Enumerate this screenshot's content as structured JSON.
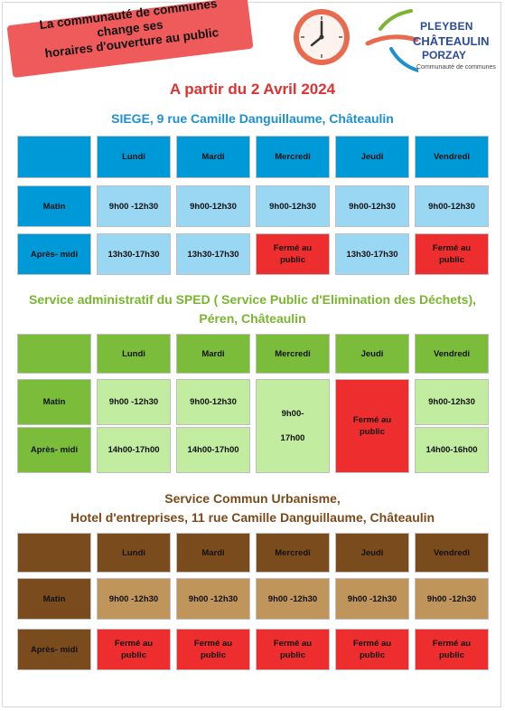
{
  "banner": {
    "line1": "La communauté de communes",
    "line2": "change ses",
    "line3": "horaires d'ouverture au public"
  },
  "logo": {
    "line1": "PLEYBEN",
    "line2": "CHÂTEAULIN",
    "line3": "PORZAY",
    "tagline": "Communauté de communes"
  },
  "icons": {
    "clock": "clock-icon",
    "logo": "logo-swoosh-icon"
  },
  "colors": {
    "red": "#ee2e2e",
    "blue_dark": "#0099d8",
    "blue_light": "#9ad7f3",
    "green_dark": "#7bbd3a",
    "green_light": "#c2ec9f",
    "brown_dark": "#7a4c1d",
    "brown_light": "#c0955c",
    "title_blue": "#1e8fd0",
    "title_green": "#7ab530",
    "title_brown": "#7a4a1b"
  },
  "date_title": "A partir du 2 Avril 2024",
  "sections": [
    {
      "title_lines": [
        "SIEGE, 9 rue Camille Danguillaume, Châteaulin"
      ],
      "days": [
        "Lundi",
        "Mardi",
        "Mercredi",
        "Jeudi",
        "Vendredi"
      ],
      "rows": [
        {
          "label": "Matin",
          "cells": [
            "9h00 -12h30",
            "9h00-12h30",
            "9h00-12h30",
            "9h00-12h30",
            "9h00-12h30"
          ]
        },
        {
          "label": "Après- midi",
          "cells": [
            "13h30-17h30",
            "13h30-17h30",
            "Fermé au public",
            "13h30-17h30",
            "Fermé au public"
          ]
        }
      ]
    },
    {
      "title_lines": [
        "Service administratif du SPED  ( Service Public d'Elimination des Déchets),",
        "Péren, Châteaulin"
      ],
      "days": [
        "Lundi",
        "Mardi",
        "Mercredi",
        "Jeudi",
        "Vendredi"
      ],
      "rows": [
        {
          "label": "Matin",
          "cells": [
            "9h00 -12h30",
            "9h00-12h30",
            "9h00-",
            "Fermé au public",
            "9h00-12h30"
          ]
        },
        {
          "label": "Après- midi",
          "cells": [
            "14h00-17h00",
            "14h00-17h00",
            "17h00",
            "",
            "14h00-16h00"
          ]
        }
      ]
    },
    {
      "title_lines": [
        "Service Commun Urbanisme,",
        "Hotel d'entreprises, 11 rue Camille Danguillaume, Châteaulin"
      ],
      "days": [
        "Lundi",
        "Mardi",
        "Mercredi",
        "Jeudi",
        "Vendredi"
      ],
      "rows": [
        {
          "label": "Matin",
          "cells": [
            "9h00 -12h30",
            "9h00 -12h30",
            "9h00 -12h30",
            "9h00 -12h30",
            "9h00 -12h30"
          ]
        },
        {
          "label": "Après- midi",
          "cells": [
            "Fermé au public",
            "Fermé au public",
            "Fermé au public",
            "Fermé au public",
            "Fermé au public"
          ]
        }
      ]
    }
  ]
}
